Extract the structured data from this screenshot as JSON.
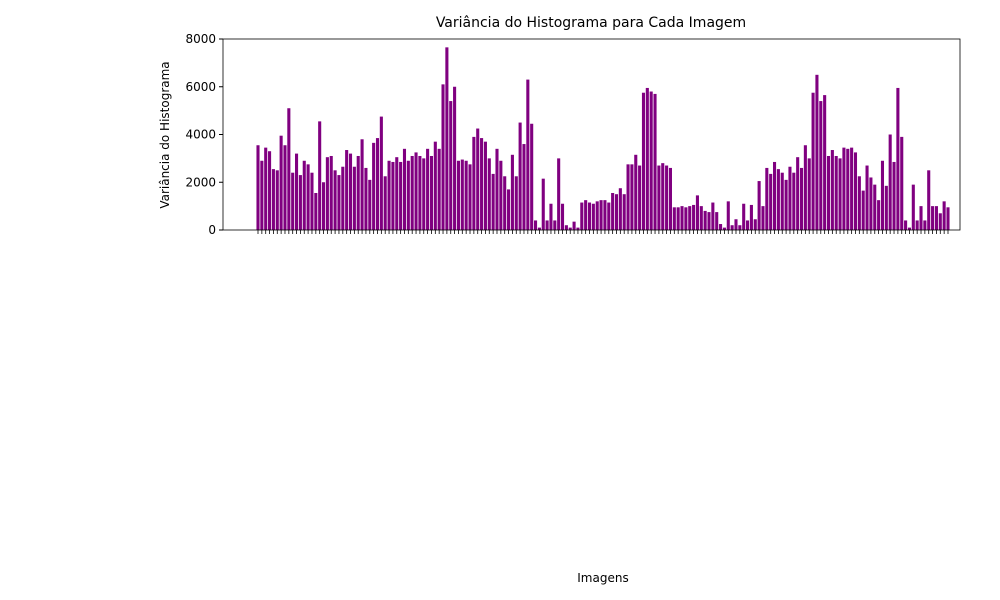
{
  "chart_data": {
    "type": "bar",
    "title": "Variância do Histograma para Cada Imagem",
    "x_label": "Imagens",
    "y_label": "Variância do Histograma",
    "color": "#800080",
    "ylim": [
      0,
      8000
    ],
    "yticks": [
      0,
      2000,
      4000,
      6000,
      8000
    ],
    "categories": [
      null,
      null,
      null,
      null,
      null,
      null,
      null,
      null,
      null,
      null,
      null,
      null,
      null,
      null,
      null,
      null,
      null,
      null,
      null,
      null,
      null,
      null,
      null,
      null,
      null,
      null,
      null,
      null,
      null,
      null,
      null,
      null,
      null,
      null,
      null,
      null,
      null,
      null,
      null,
      null,
      null,
      null,
      null,
      null,
      null,
      null,
      null,
      null,
      null,
      null,
      null,
      null,
      null,
      null,
      null,
      null,
      null,
      null,
      null,
      null,
      null,
      null,
      null,
      null,
      null,
      null,
      null,
      null,
      null,
      null,
      null,
      null,
      null,
      null,
      null,
      null,
      null,
      null,
      null,
      null,
      null,
      null,
      null,
      null,
      null,
      null,
      null,
      null,
      null,
      null,
      null,
      null,
      null,
      null,
      null,
      null,
      null,
      null,
      null,
      null,
      null,
      null,
      null,
      null,
      null,
      null,
      null,
      null,
      null,
      null,
      null,
      null,
      null,
      null,
      null,
      null,
      null,
      null,
      null,
      null,
      null,
      null,
      null,
      null,
      null,
      null,
      null,
      null,
      null,
      null,
      null,
      null,
      null,
      null,
      null,
      null,
      null,
      null,
      null,
      null,
      null,
      null,
      null,
      null,
      null,
      null,
      null,
      null,
      null,
      null,
      null,
      null,
      null,
      null,
      null,
      null,
      null,
      null,
      null,
      null,
      null,
      null,
      null,
      null,
      null,
      null,
      null,
      null,
      null,
      null,
      null,
      null,
      null,
      null,
      null,
      null,
      null,
      null,
      null,
      null
    ],
    "values": [
      3550,
      2900,
      3450,
      3300,
      2550,
      2500,
      3950,
      3550,
      5100,
      2400,
      3200,
      2300,
      2900,
      2750,
      2400,
      1550,
      4550,
      2000,
      3050,
      3100,
      2500,
      2300,
      2650,
      3350,
      3200,
      2650,
      3100,
      3800,
      2600,
      2100,
      3650,
      3850,
      4750,
      2250,
      2900,
      2850,
      3050,
      2850,
      3400,
      2900,
      3100,
      3250,
      3100,
      3000,
      3400,
      3100,
      3700,
      3400,
      6100,
      7650,
      5400,
      6000,
      2900,
      2950,
      2900,
      2750,
      3900,
      4250,
      3850,
      3700,
      3000,
      2350,
      3400,
      2900,
      2250,
      1700,
      3150,
      2250,
      4500,
      3600,
      6300,
      4450,
      400,
      100,
      2150,
      400,
      1100,
      400,
      3000,
      1100,
      200,
      100,
      350,
      100,
      1150,
      1250,
      1150,
      1100,
      1200,
      1250,
      1250,
      1150,
      1550,
      1500,
      1750,
      1500,
      2750,
      2750,
      3150,
      2700,
      5750,
      5950,
      5800,
      5700,
      2700,
      2800,
      2700,
      2600,
      950,
      950,
      1000,
      950,
      1000,
      1050,
      1450,
      1000,
      800,
      750,
      1150,
      750,
      250,
      100,
      1200,
      200,
      450,
      200,
      1100,
      400,
      1050,
      450,
      2050,
      1000,
      2600,
      2350,
      2850,
      2550,
      2400,
      2100,
      2650,
      2400,
      3050,
      2600,
      3550,
      3000,
      5750,
      6500,
      5400,
      5650,
      3100,
      3350,
      3100,
      3000,
      3450,
      3400,
      3450,
      3250,
      2250,
      1650,
      2700,
      2200,
      1900,
      1250,
      2900,
      1850,
      4000,
      2850,
      5950,
      3900,
      400,
      100,
      1900,
      400,
      1000,
      400,
      2500,
      1000,
      1000,
      700,
      1200,
      950
    ]
  }
}
